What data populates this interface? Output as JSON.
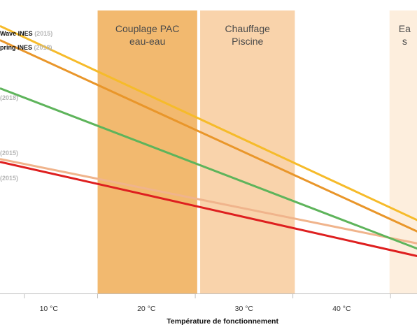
{
  "chart_data": {
    "type": "line",
    "title": "",
    "xlabel": "Température de fonctionnement",
    "ylabel": "",
    "xlim": [
      5,
      48
    ],
    "ylim": [
      0,
      100
    ],
    "xticks": [
      10,
      20,
      30,
      40
    ],
    "xtick_labels": [
      "10 °C",
      "20 °C",
      "30 °C",
      "40 °C"
    ],
    "grid": false,
    "bands": [
      {
        "from": 15,
        "to": 25.2,
        "label_lines": [
          "Couplage PAC",
          "eau-eau"
        ],
        "color": "#f2b96f"
      },
      {
        "from": 25.5,
        "to": 35.2,
        "label_lines": [
          "Chauffage",
          "Piscine"
        ],
        "color": "#f9d3ab"
      },
      {
        "from": 44.9,
        "to": 48,
        "label_lines": [
          "Ea",
          "s"
        ],
        "color": "#fdeedd"
      }
    ],
    "series": [
      {
        "name": "Wave INES",
        "year": "(2015)",
        "color": "#f6bb2a",
        "x": [
          5,
          48
        ],
        "y": [
          94.5,
          25.5
        ]
      },
      {
        "name": "pring INES",
        "year": "(2018)",
        "color": "#e9962a",
        "x": [
          5,
          48
        ],
        "y": [
          89.5,
          21.5
        ]
      },
      {
        "name": "",
        "year": "(2018)",
        "color": "#5eb45b",
        "x": [
          5,
          48
        ],
        "y": [
          72.5,
          15.5
        ]
      },
      {
        "name": "",
        "year": "(2015)",
        "color": "#f0b48c",
        "x": [
          5,
          48
        ],
        "y": [
          47.5,
          17.5
        ]
      },
      {
        "name": "",
        "year": "(2015)",
        "color": "#de1f1f",
        "x": [
          5,
          48
        ],
        "y": [
          46.5,
          13.0
        ]
      }
    ]
  }
}
